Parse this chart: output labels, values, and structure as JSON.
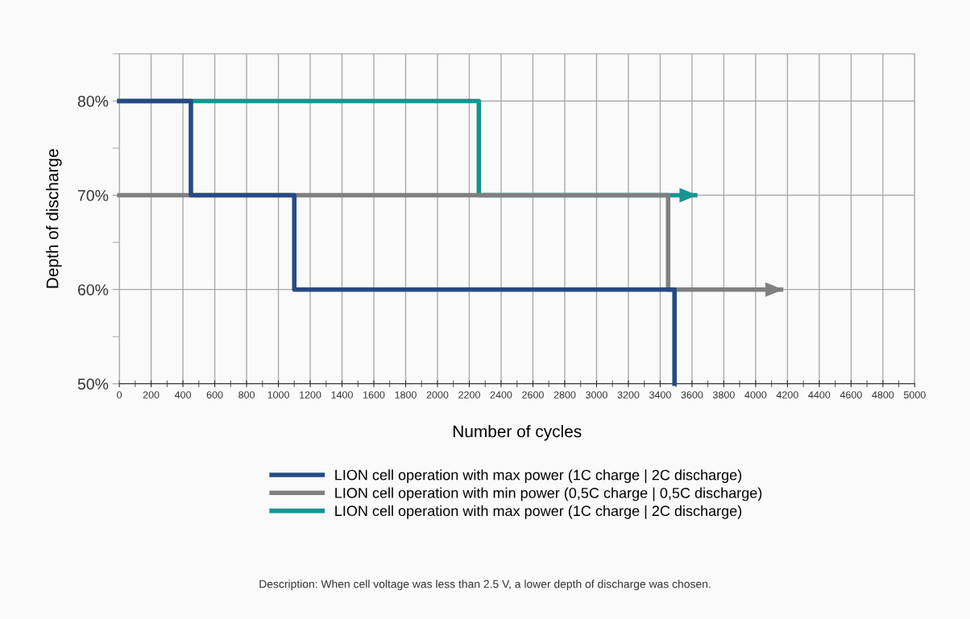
{
  "chart_data": {
    "type": "step",
    "xlabel": "Number of cycles",
    "ylabel": "Depth of discharge",
    "xlim": [
      0,
      5000
    ],
    "ylim": [
      50,
      85
    ],
    "xticks": [
      0,
      {
        "value": 100,
        "label": null
      },
      200,
      {
        "value": 300,
        "label": null
      },
      400,
      {
        "value": 500,
        "label": null
      },
      600,
      {
        "value": 700,
        "label": null
      },
      800,
      {
        "value": 900,
        "label": null
      },
      1000,
      {
        "value": 1100,
        "label": null
      },
      1200,
      {
        "value": 1300,
        "label": null
      },
      1400,
      {
        "value": 1500,
        "label": null
      },
      1600,
      {
        "value": 1700,
        "label": null
      },
      1800,
      {
        "value": 1900,
        "label": null
      },
      2000,
      {
        "value": 2100,
        "label": null
      },
      2200,
      {
        "value": 2300,
        "label": null
      },
      2400,
      {
        "value": 2500,
        "label": null
      },
      2600,
      {
        "value": 2700,
        "label": null
      },
      2800,
      {
        "value": 2900,
        "label": null
      },
      3000,
      {
        "value": 3100,
        "label": null
      },
      3200,
      {
        "value": 3300,
        "label": null
      },
      3400,
      {
        "value": 3500,
        "label": null
      },
      3600,
      {
        "value": 3700,
        "label": null
      },
      3800,
      {
        "value": 3900,
        "label": null
      },
      4000,
      {
        "value": 4100,
        "label": null
      },
      4200,
      {
        "value": 4300,
        "label": null
      },
      4400,
      {
        "value": 4500,
        "label": null
      },
      4600,
      {
        "value": 4700,
        "label": null
      },
      4800,
      {
        "value": 4900,
        "label": null
      },
      5000
    ],
    "yticks": [
      {
        "value": 50,
        "label": "50%"
      },
      {
        "value": 55,
        "label": null
      },
      {
        "value": 60,
        "label": "60%"
      },
      {
        "value": 65,
        "label": null
      },
      {
        "value": 70,
        "label": "70%"
      },
      {
        "value": 75,
        "label": null
      },
      {
        "value": 80,
        "label": "80%"
      },
      {
        "value": 85,
        "label": null
      }
    ],
    "grid": true,
    "legend": "bottom",
    "line_style": "solid",
    "series": [
      {
        "name": "LION cell operation with max power (1C charge | 2C discharge)",
        "color": "#264a82",
        "x": [
          0,
          450,
          1100,
          3490
        ],
        "values": [
          80,
          70,
          60,
          50
        ]
      },
      {
        "name": "LION cell operation with min power (0,5C charge | 0,5C discharge)",
        "color": "#808080",
        "x": [
          0,
          3450,
          4160
        ],
        "values": [
          70,
          60,
          60
        ]
      },
      {
        "name": "LION cell operation with max power (1C charge | 2C discharge)",
        "color": "#1a9490",
        "x": [
          0,
          2260,
          3620
        ],
        "values": [
          80,
          70,
          70
        ]
      }
    ],
    "annotations": [
      "Description: When cell voltage was less than 2.5 V, a lower depth of discharge was chosen."
    ]
  }
}
